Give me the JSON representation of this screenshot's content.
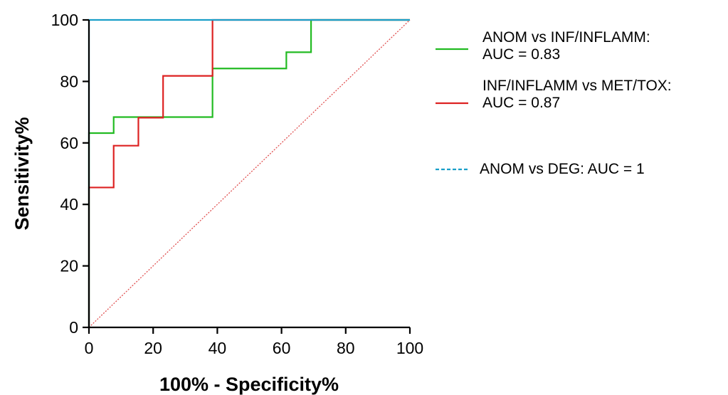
{
  "chart_data": {
    "type": "line",
    "xlabel": "100% - Specificity%",
    "ylabel": "Sensitivity%",
    "xlim": [
      0,
      100
    ],
    "ylim": [
      0,
      100
    ],
    "x_ticks": [
      "0",
      "20",
      "40",
      "60",
      "80",
      "100"
    ],
    "y_ticks": [
      "0",
      "20",
      "40",
      "60",
      "80",
      "100"
    ],
    "grid": false,
    "legend_position": "right",
    "series": [
      {
        "name": "ANOM vs INF/INFLAMM: AUC = 0.83",
        "legend_lines": [
          "ANOM vs INF/INFLAMM:",
          "AUC = 0.83"
        ],
        "color": "#22bb22",
        "line_style": "solid",
        "x": [
          0,
          0,
          7.7,
          7.7,
          38.5,
          38.5,
          61.5,
          61.5,
          69.2,
          69.2,
          100
        ],
        "y": [
          0,
          63.2,
          63.2,
          68.4,
          68.4,
          84.2,
          84.2,
          89.5,
          89.5,
          100,
          100
        ]
      },
      {
        "name": "INF/INFLAMM vs MET/TOX: AUC = 0.87",
        "legend_lines": [
          "INF/INFLAMM vs MET/TOX:",
          "AUC = 0.87"
        ],
        "color": "#dd2222",
        "line_style": "solid",
        "x": [
          0,
          0,
          7.7,
          7.7,
          15.4,
          15.4,
          23.1,
          23.1,
          38.5,
          38.5,
          100
        ],
        "y": [
          0,
          45.5,
          45.5,
          59.1,
          59.1,
          68.2,
          68.2,
          81.8,
          81.8,
          100,
          100
        ]
      },
      {
        "name": "ANOM vs DEG: AUC = 1",
        "legend_lines": [
          "ANOM vs DEG: AUC = 1"
        ],
        "color": "#1a9fc9",
        "line_style": "dashed",
        "x": [
          0,
          0,
          100
        ],
        "y": [
          0,
          100,
          100
        ]
      }
    ],
    "reference_line": {
      "color": "#e05050",
      "line_style": "dotted",
      "x": [
        0,
        100
      ],
      "y": [
        0,
        100
      ]
    }
  }
}
